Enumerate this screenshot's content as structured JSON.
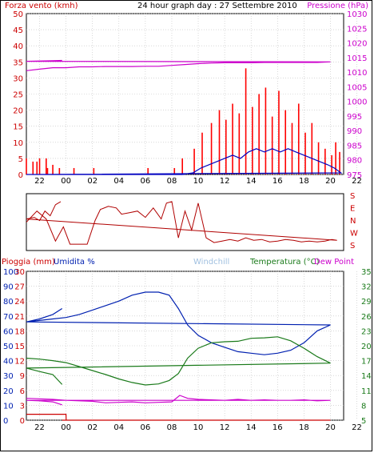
{
  "header": {
    "title": "24 hour graph day : 27 Settembre 2010",
    "wind_label": "Forza vento (kmh)",
    "pressure_label": "Pressione (hPa)"
  },
  "wind_dir": {
    "labels": [
      "S",
      "E",
      "N",
      "W",
      "S"
    ]
  },
  "bottom_header": {
    "rain_label": "Pioggia (mm)",
    "humidity_label": "Umidita %",
    "windchill_label": "Windchill",
    "temp_label": "Temperatura (°C)",
    "dew_label": "Dew Point"
  },
  "colors": {
    "wind_gust": "#ff0000",
    "wind_avg": "#0000c0",
    "pressure": "#cc00cc",
    "wind_dir": "#b00000",
    "humidity": "#0020b0",
    "temperature": "#1a7a1a",
    "dew_point": "#cc00cc",
    "rain": "#cc0000",
    "windchill": "#a0c0e0",
    "grid": "#c0c0c0"
  },
  "chart_data": [
    {
      "type": "line",
      "title": "24 hour graph day : 27 Settembre 2010",
      "ylabel": "Forza vento (kmh)",
      "y2label": "Pressione (hPa)",
      "x_ticks": [
        "22",
        "00",
        "02",
        "04",
        "06",
        "08",
        "10",
        "12",
        "14",
        "16",
        "18",
        "20",
        "22"
      ],
      "ylim": [
        0,
        50
      ],
      "y_ticks": [
        0,
        5,
        10,
        15,
        20,
        25,
        30,
        35,
        40,
        45,
        50
      ],
      "y2lim": [
        975,
        1030
      ],
      "y2_ticks": [
        975,
        980,
        985,
        990,
        995,
        1000,
        1005,
        1010,
        1015,
        1020,
        1025,
        1030
      ],
      "grid": true,
      "series": [
        {
          "name": "Raffica",
          "x": [
            21,
            21.8,
            22.6,
            23.4,
            0.6,
            2.1,
            6.2,
            8.2,
            8.8,
            9.7,
            10.3,
            11.0,
            11.6,
            12.1,
            12.6,
            13.1,
            13.6,
            14.1,
            14.6,
            15.1,
            15.6,
            16.1,
            16.6,
            17.1,
            17.6,
            18.1,
            18.6,
            19.1,
            19.6,
            20.1,
            20.4,
            20.7,
            21.5,
            22.0,
            22.5,
            23.0,
            23.5
          ],
          "values": [
            5,
            4,
            2,
            0,
            2,
            2,
            2,
            2,
            5,
            8,
            13,
            16,
            20,
            17,
            22,
            19,
            33,
            21,
            25,
            27,
            18,
            26,
            20,
            16,
            22,
            13,
            16,
            10,
            8,
            6,
            10,
            7,
            4,
            5,
            5,
            3,
            2
          ]
        },
        {
          "name": "Vento medio",
          "x": [
            21,
            22,
            23,
            0,
            2,
            4,
            6,
            8,
            8.8,
            9.6,
            10.2,
            10.8,
            11.4,
            12.0,
            12.6,
            13.2,
            13.8,
            14.4,
            15.0,
            15.6,
            16.2,
            16.8,
            17.4,
            18.0,
            18.6,
            19.2,
            19.8,
            20.3,
            20.8,
            21.5,
            22.5,
            23.5
          ],
          "values": [
            0,
            0,
            0,
            0,
            0,
            0,
            0,
            0,
            0,
            0.5,
            2,
            3,
            4,
            5,
            6,
            5,
            7,
            8,
            7,
            8,
            7,
            8,
            7,
            6,
            5,
            4,
            3,
            2,
            0.5,
            0,
            0,
            0
          ]
        },
        {
          "name": "Pressione",
          "axis": "y2",
          "x": [
            21,
            22,
            23,
            0,
            1,
            2,
            3,
            4,
            5,
            6,
            7,
            8,
            9,
            10,
            11,
            12,
            13,
            14,
            15,
            16,
            17,
            18,
            19,
            20,
            21,
            22,
            23,
            23.7
          ],
          "values": [
            1010.5,
            1011,
            1011.5,
            1011.5,
            1011.8,
            1011.8,
            1011.9,
            1011.9,
            1011.9,
            1012,
            1012,
            1012.3,
            1012.6,
            1012.9,
            1013.1,
            1013.2,
            1013.2,
            1013.2,
            1013.3,
            1013.3,
            1013.3,
            1013.3,
            1013.3,
            1013.5,
            1013.7,
            1013.8,
            1013.9,
            1014
          ]
        }
      ]
    },
    {
      "type": "line",
      "ylabel": "S E N W S",
      "y_ticks": [
        "S",
        "E",
        "N",
        "W",
        "S"
      ],
      "ylim": [
        0,
        360
      ],
      "grid": false,
      "series": [
        {
          "name": "Direzione vento",
          "x": [
            21,
            21.8,
            22.5,
            23.2,
            23.8,
            0.3,
            0.8,
            1.6,
            2.2,
            2.6,
            3.2,
            3.8,
            4.2,
            4.8,
            5.4,
            6.0,
            6.6,
            7.2,
            7.6,
            8.0,
            8.5,
            9.0,
            9.5,
            10.0,
            10.6,
            11.2,
            11.8,
            12.4,
            13.0,
            13.6,
            14.2,
            14.8,
            15.4,
            16.0,
            16.6,
            17.2,
            17.8,
            18.4,
            19.0,
            19.6,
            20.1,
            20.5,
            21.0,
            21.6,
            22.0,
            22.4,
            22.8,
            23.2,
            23.6
          ],
          "values": [
            180,
            250,
            200,
            60,
            150,
            40,
            40,
            40,
            190,
            260,
            280,
            270,
            230,
            240,
            250,
            210,
            270,
            200,
            300,
            310,
            80,
            250,
            130,
            300,
            80,
            50,
            60,
            70,
            60,
            80,
            65,
            70,
            55,
            60,
            70,
            65,
            55,
            60,
            55,
            60,
            70,
            65,
            200,
            210,
            190,
            250,
            220,
            290,
            310
          ]
        }
      ]
    },
    {
      "type": "line",
      "x_ticks": [
        "22",
        "00",
        "02",
        "04",
        "06",
        "08",
        "10",
        "12",
        "14",
        "16",
        "18",
        "20",
        "22"
      ],
      "ylabel": "Pioggia (mm) / Umidita %",
      "y2label": "Temperatura (°C) / Dew Point",
      "rain_ticks": [
        0,
        3,
        6,
        9,
        12,
        15,
        18,
        21,
        24,
        27,
        30
      ],
      "humidity_ticks": [
        0,
        10,
        20,
        30,
        40,
        50,
        60,
        70,
        80,
        90,
        100
      ],
      "ylim": [
        0,
        100
      ],
      "y2lim": [
        5,
        35
      ],
      "y2_ticks": [
        5,
        8,
        11,
        14,
        17,
        20,
        23,
        26,
        29,
        32,
        35
      ],
      "grid": true,
      "series": [
        {
          "name": "Umidita %",
          "x": [
            21,
            22,
            23,
            0,
            1,
            2,
            3,
            4,
            5,
            6,
            7,
            7.8,
            8.5,
            9.2,
            10,
            11,
            12,
            13,
            14,
            15,
            16,
            17,
            18,
            19,
            20,
            21,
            22,
            23,
            23.7
          ],
          "values": [
            66,
            67,
            68,
            69,
            71,
            74,
            77,
            80,
            84,
            86,
            86,
            84,
            75,
            64,
            57,
            52,
            49,
            46,
            45,
            44,
            45,
            47,
            52,
            60,
            64,
            66,
            68,
            71,
            75
          ]
        },
        {
          "name": "Temperatura (°C)",
          "axis": "y2",
          "x": [
            21,
            22,
            23,
            0,
            1,
            2,
            3,
            4,
            5,
            6,
            7,
            7.8,
            8.5,
            9.2,
            10,
            11,
            12,
            13,
            14,
            15,
            16,
            17,
            18,
            19,
            20,
            21,
            22,
            23,
            23.7
          ],
          "values": [
            17.5,
            17.3,
            17.0,
            16.6,
            15.8,
            15.0,
            14.2,
            13.3,
            12.6,
            12.1,
            12.3,
            13.0,
            14.4,
            17.5,
            19.5,
            20.6,
            20.8,
            20.9,
            21.5,
            21.6,
            21.8,
            21.0,
            19.5,
            17.8,
            16.5,
            15.5,
            14.8,
            14.2,
            12.2
          ]
        },
        {
          "name": "Dew Point",
          "axis": "y2",
          "x": [
            21,
            22,
            23,
            0,
            1,
            2,
            3,
            4,
            5,
            6,
            7,
            8,
            8.6,
            9.2,
            10,
            11,
            12,
            13,
            14,
            15,
            16,
            17,
            18,
            19,
            20,
            21,
            22,
            23,
            23.7
          ],
          "values": [
            9.4,
            9.3,
            9.2,
            9.0,
            8.9,
            8.8,
            8.5,
            8.6,
            8.7,
            8.5,
            8.6,
            8.7,
            10.0,
            9.4,
            9.2,
            9.1,
            9.0,
            9.2,
            9.0,
            9.1,
            9.0,
            9.0,
            9.1,
            8.9,
            9.0,
            9.0,
            8.9,
            8.7,
            8.1
          ]
        },
        {
          "name": "Pioggia (mm)",
          "x": [
            21,
            22,
            23,
            0,
            0.01,
            2,
            10,
            20,
            23.7
          ],
          "values": [
            1.2,
            1.2,
            1.2,
            1.2,
            0,
            0,
            0,
            0,
            0
          ]
        }
      ]
    }
  ]
}
